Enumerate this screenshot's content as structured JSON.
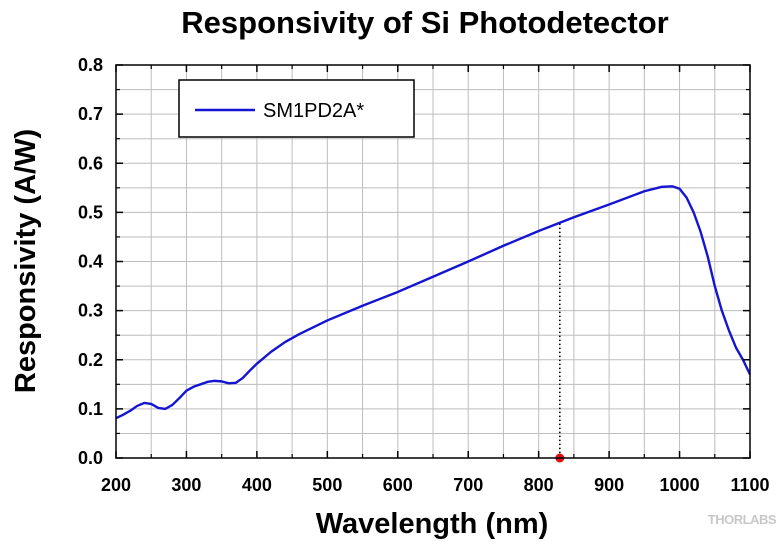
{
  "chart_data": {
    "type": "line",
    "title": "Responsivity of Si Photodetector",
    "xlabel": "Wavelength (nm)",
    "ylabel": "Responsivity (A/W)",
    "xlim": [
      200,
      1100
    ],
    "ylim": [
      0,
      0.8
    ],
    "x_ticks": [
      "200",
      "300",
      "400",
      "500",
      "600",
      "700",
      "800",
      "900",
      "1000",
      "1100"
    ],
    "y_ticks": [
      "0.0",
      "0.1",
      "0.2",
      "0.3",
      "0.4",
      "0.5",
      "0.6",
      "0.7",
      "0.8"
    ],
    "grid": true,
    "legend_position": "top-left",
    "series": [
      {
        "name": "SM1PD2A*",
        "color": "#1414d2",
        "x": [
          200,
          210,
          220,
          230,
          240,
          250,
          260,
          270,
          280,
          290,
          300,
          310,
          320,
          330,
          340,
          350,
          360,
          370,
          380,
          390,
          400,
          420,
          440,
          460,
          480,
          500,
          550,
          600,
          650,
          700,
          750,
          800,
          850,
          900,
          950,
          975,
          990,
          1000,
          1010,
          1020,
          1030,
          1040,
          1050,
          1060,
          1070,
          1080,
          1090,
          1100
        ],
        "y": [
          0.081,
          0.088,
          0.096,
          0.106,
          0.112,
          0.11,
          0.102,
          0.1,
          0.108,
          0.122,
          0.137,
          0.145,
          0.15,
          0.155,
          0.157,
          0.156,
          0.152,
          0.153,
          0.163,
          0.178,
          0.192,
          0.216,
          0.236,
          0.252,
          0.266,
          0.28,
          0.31,
          0.338,
          0.369,
          0.4,
          0.432,
          0.462,
          0.49,
          0.516,
          0.543,
          0.552,
          0.553,
          0.548,
          0.53,
          0.5,
          0.46,
          0.41,
          0.35,
          0.3,
          0.26,
          0.225,
          0.2,
          0.17
        ]
      }
    ],
    "marker": {
      "x": 830,
      "y": 0.0,
      "color": "#e01010",
      "line_to_y": 0.477
    },
    "watermark": "THORLABS"
  }
}
